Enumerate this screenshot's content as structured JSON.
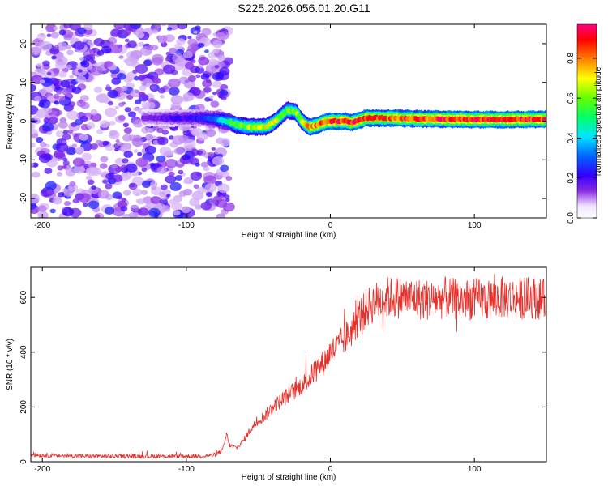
{
  "title": "S225.2026.056.01.20.G11",
  "chart_data": [
    {
      "type": "heatmap",
      "xlabel": "Height of straight line (km)",
      "ylabel": "Frequency (Hz)",
      "xlim": [
        -208,
        150
      ],
      "ylim": [
        -25,
        25
      ],
      "xticks": [
        -200,
        -100,
        0,
        100
      ],
      "yticks": [
        -20,
        -10,
        0,
        10,
        20
      ],
      "colorbar": {
        "label": "Normalized spectral amplitude",
        "range": [
          0,
          0.97
        ],
        "ticks": [
          0.0,
          0.2,
          0.4,
          0.6,
          0.8
        ]
      },
      "ridge": {
        "x": [
          -130,
          -110,
          -90,
          -80,
          -72,
          -65,
          -55,
          -45,
          -38,
          -30,
          -24,
          -20,
          -15,
          -10,
          -5,
          0,
          10,
          15,
          25,
          40,
          60,
          80,
          100,
          120,
          150
        ],
        "y": [
          0.8,
          0.8,
          0.8,
          0.5,
          0.0,
          -1.0,
          -1.5,
          -1.5,
          0.0,
          2.8,
          2.5,
          0.0,
          -1.5,
          -1.2,
          -0.3,
          0.0,
          0.0,
          -0.4,
          0.8,
          0.8,
          0.6,
          0.5,
          0.4,
          0.4,
          0.5
        ],
        "amplitude": [
          0.15,
          0.2,
          0.25,
          0.35,
          0.5,
          0.6,
          0.65,
          0.7,
          0.7,
          0.6,
          0.65,
          0.7,
          0.8,
          0.85,
          0.9,
          0.92,
          0.95,
          0.95,
          0.9,
          0.88,
          0.9,
          0.92,
          0.95,
          0.95,
          0.92
        ]
      },
      "noise_region_x": [
        -208,
        -80
      ]
    },
    {
      "type": "line",
      "xlabel": "Height of straight line (km)",
      "ylabel": "SNR (10 * v/v)",
      "xlim": [
        -208,
        150
      ],
      "ylim": [
        0,
        710
      ],
      "xticks": [
        -200,
        -100,
        0,
        100
      ],
      "yticks": [
        0,
        200,
        400,
        600
      ],
      "series": [
        {
          "name": "SNR",
          "color": "#e8302a",
          "x": [
            -208,
            -190,
            -170,
            -150,
            -130,
            -110,
            -90,
            -80,
            -75,
            -72,
            -70,
            -65,
            -60,
            -55,
            -50,
            -45,
            -40,
            -35,
            -30,
            -25,
            -20,
            -15,
            -10,
            -5,
            0,
            5,
            10,
            15,
            20,
            25,
            30,
            35,
            40,
            50,
            60,
            70,
            80,
            90,
            100,
            110,
            120,
            130,
            140,
            150
          ],
          "values": [
            25,
            22,
            20,
            20,
            20,
            20,
            20,
            25,
            40,
            100,
            60,
            50,
            80,
            120,
            150,
            170,
            200,
            220,
            240,
            260,
            280,
            300,
            340,
            360,
            400,
            420,
            450,
            480,
            530,
            560,
            580,
            590,
            600,
            600,
            595,
            590,
            600,
            590,
            595,
            590,
            600,
            595,
            600,
            590
          ]
        }
      ]
    }
  ]
}
